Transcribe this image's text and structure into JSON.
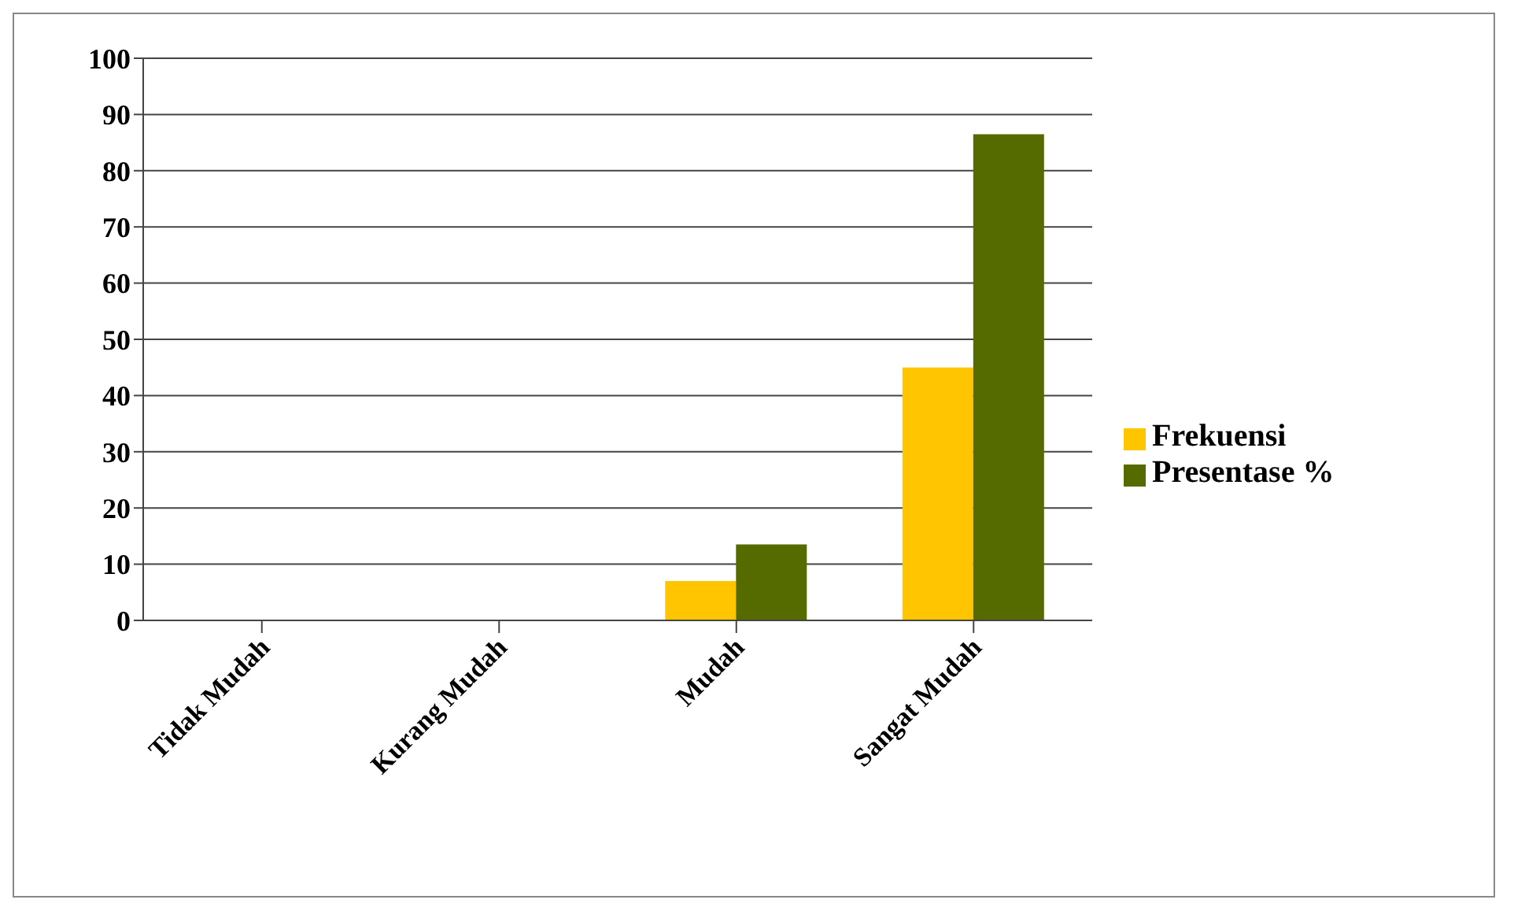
{
  "chart_data": {
    "type": "bar",
    "categories": [
      "Tidak Mudah",
      "Kurang Mudah",
      "Mudah",
      "Sangat Mudah"
    ],
    "series": [
      {
        "name": "Frekuensi",
        "color": "#ffc600",
        "values": [
          0,
          0,
          7,
          45
        ]
      },
      {
        "name": "Presentase %",
        "color": "#556b00",
        "values": [
          0,
          0,
          13.5,
          86.5
        ]
      }
    ],
    "ylim": [
      0,
      100
    ],
    "yticks": [
      0,
      10,
      20,
      30,
      40,
      50,
      60,
      70,
      80,
      90,
      100
    ],
    "grid": "y",
    "legend": "right"
  }
}
